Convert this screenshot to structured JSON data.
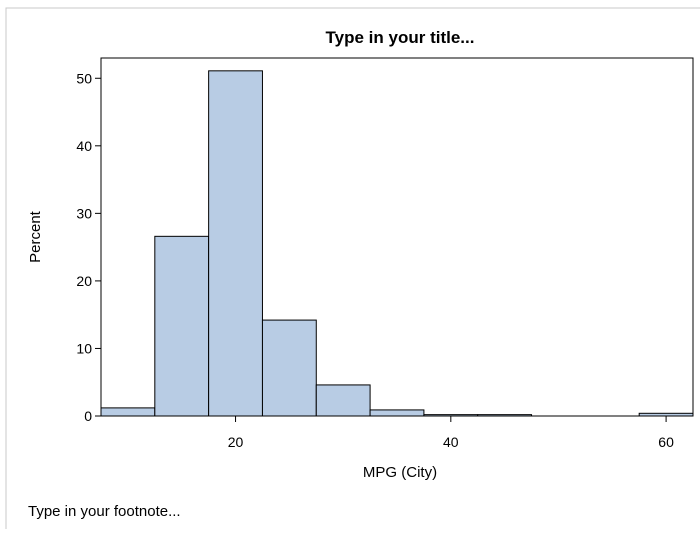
{
  "chart_data": {
    "type": "bar",
    "title": "Type in your title...",
    "xlabel": "MPG (City)",
    "ylabel": "Percent",
    "footnote": "Type in your footnote...",
    "xlim": [
      7.5,
      62.5
    ],
    "ylim": [
      0,
      53
    ],
    "bin_width": 5,
    "bins": [
      {
        "start": 7.5,
        "end": 12.5,
        "value": 1.2
      },
      {
        "start": 12.5,
        "end": 17.5,
        "value": 26.6
      },
      {
        "start": 17.5,
        "end": 22.5,
        "value": 51.1
      },
      {
        "start": 22.5,
        "end": 27.5,
        "value": 14.2
      },
      {
        "start": 27.5,
        "end": 32.5,
        "value": 4.6
      },
      {
        "start": 32.5,
        "end": 37.5,
        "value": 0.9
      },
      {
        "start": 37.5,
        "end": 42.5,
        "value": 0.2
      },
      {
        "start": 42.5,
        "end": 47.5,
        "value": 0.2
      },
      {
        "start": 47.5,
        "end": 52.5,
        "value": 0
      },
      {
        "start": 52.5,
        "end": 57.5,
        "value": 0
      },
      {
        "start": 57.5,
        "end": 62.5,
        "value": 0.4
      }
    ],
    "x_ticks": [
      20,
      40,
      60
    ],
    "y_ticks": [
      0,
      10,
      20,
      30,
      40,
      50
    ],
    "grid": false,
    "legend": "none",
    "bar_fill": "#b8cce4",
    "bar_stroke": "#000000"
  }
}
